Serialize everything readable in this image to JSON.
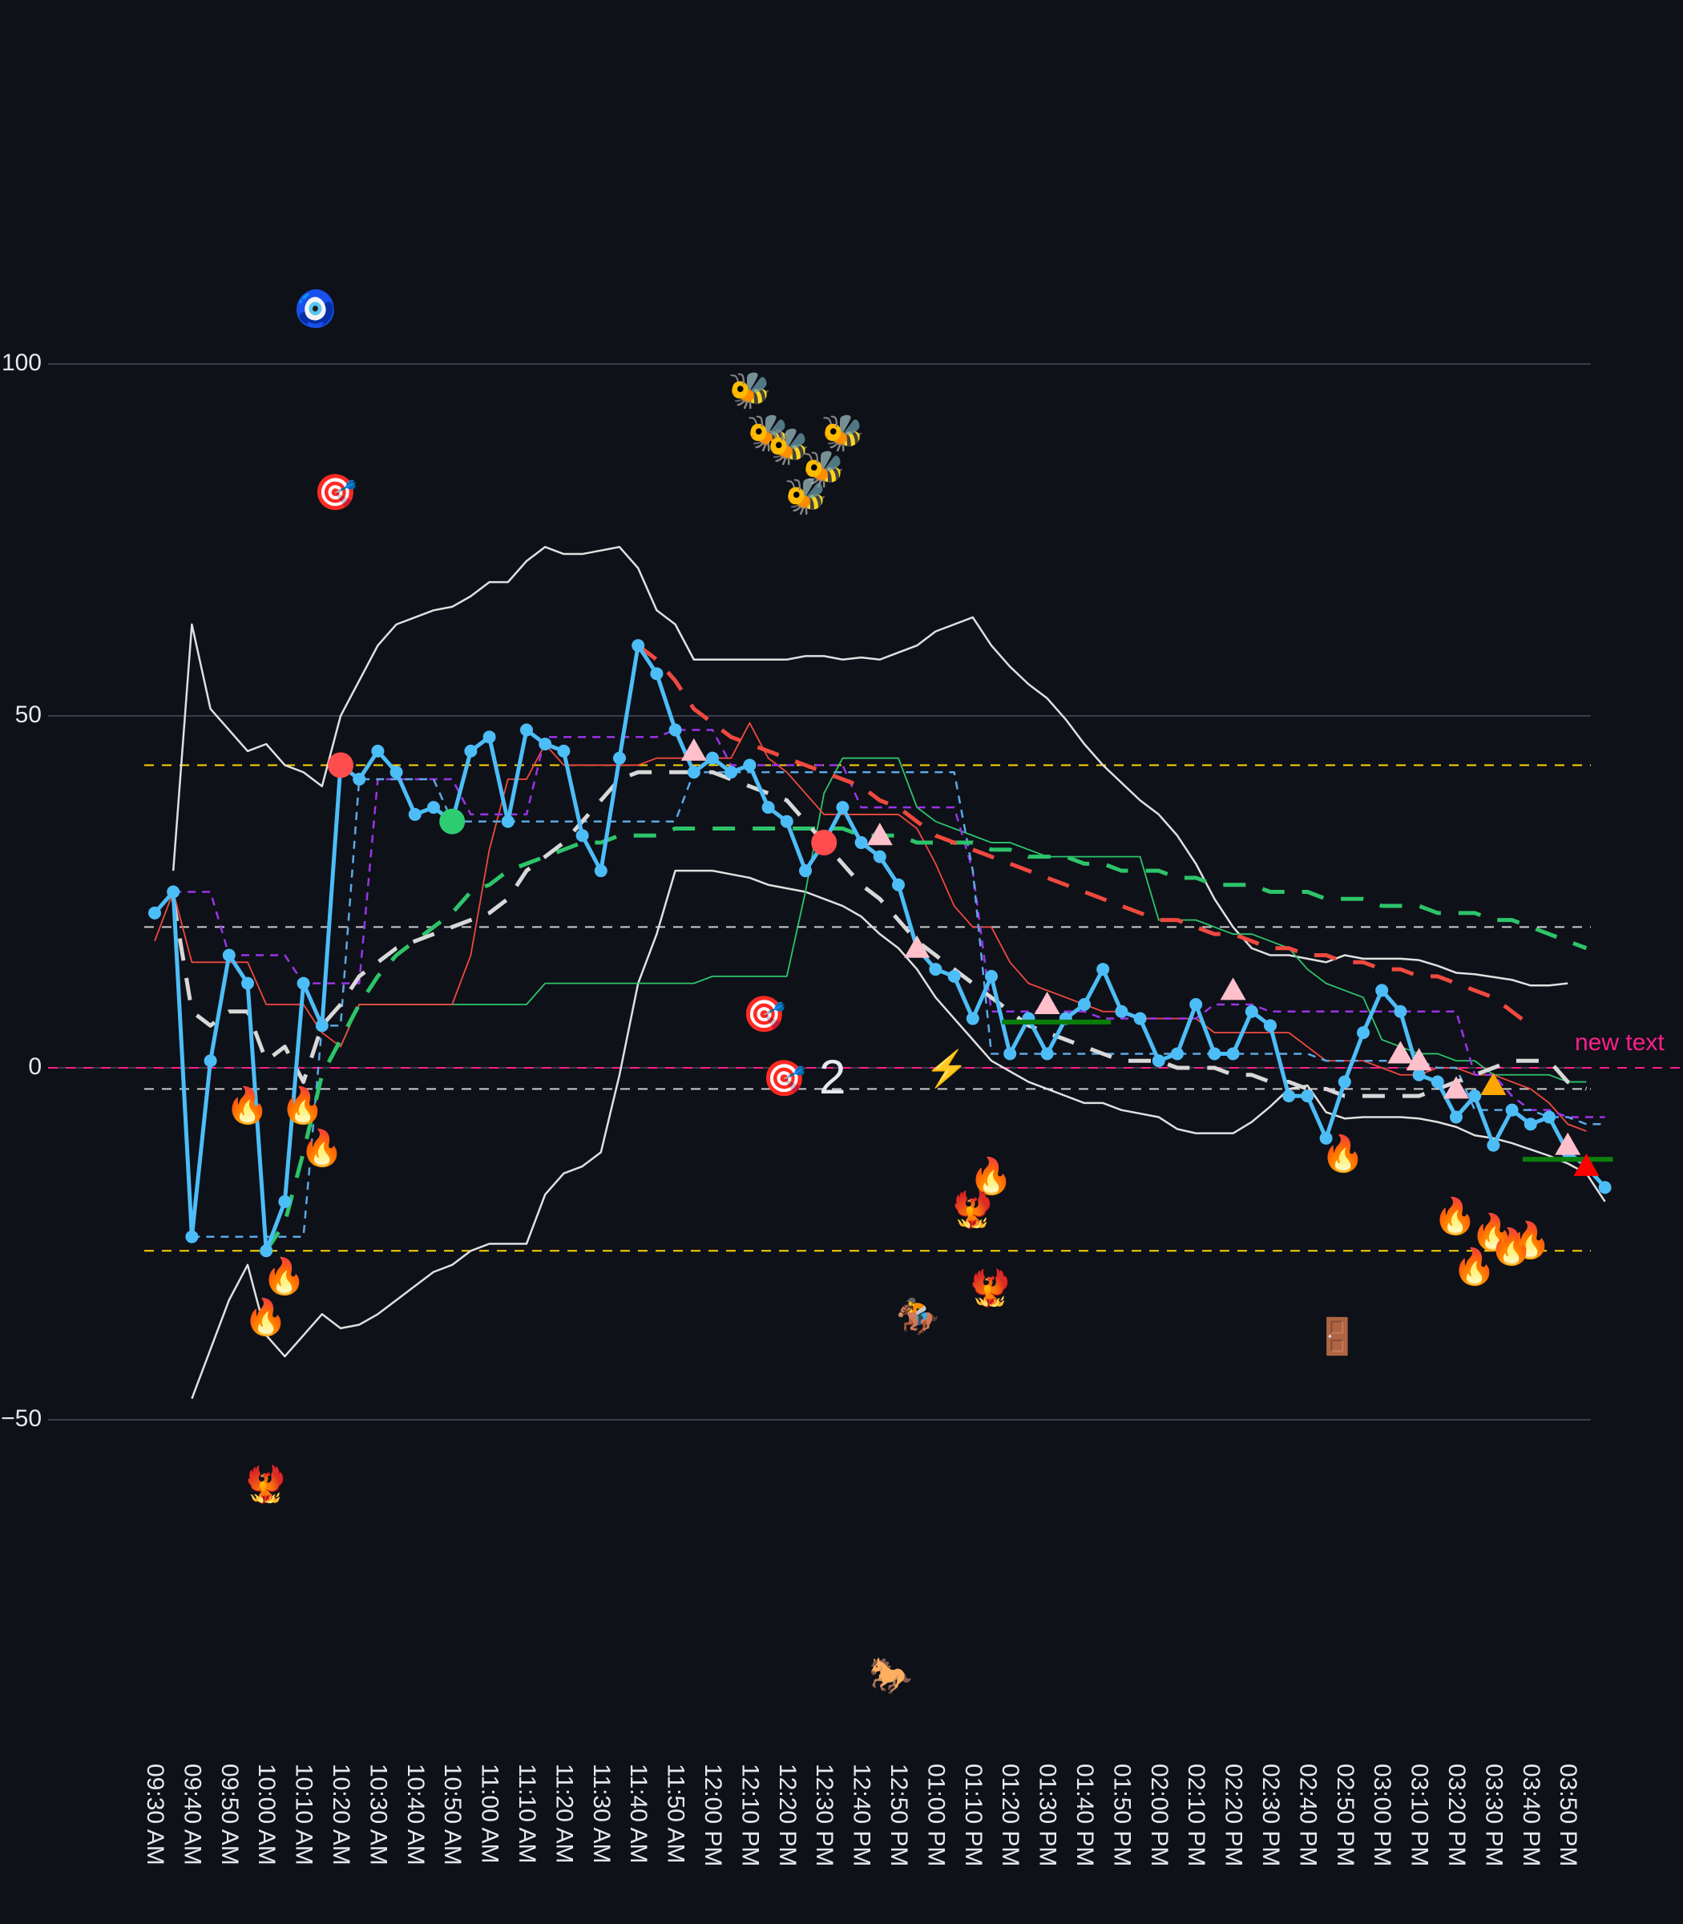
{
  "chart_data": {
    "type": "line",
    "title": "",
    "xlabel": "",
    "ylabel": "",
    "ylim": [
      -100,
      130
    ],
    "yticks": [
      100,
      50,
      0,
      -50
    ],
    "ytick_labels": [
      "100",
      "50",
      "0",
      "−50"
    ],
    "grid": "horizontal",
    "background": "#0e1118",
    "x_tick_labels": [
      "09:30 AM",
      "09:40 AM",
      "09:50 AM",
      "10:00 AM",
      "10:10 AM",
      "10:20 AM",
      "10:30 AM",
      "10:40 AM",
      "10:50 AM",
      "11:00 AM",
      "11:10 AM",
      "11:20 AM",
      "11:30 AM",
      "11:40 AM",
      "11:50 AM",
      "12:00 PM",
      "12:10 PM",
      "12:20 PM",
      "12:30 PM",
      "12:40 PM",
      "12:50 PM",
      "01:00 PM",
      "01:10 PM",
      "01:20 PM",
      "01:30 PM",
      "01:40 PM",
      "01:50 PM",
      "02:00 PM",
      "02:10 PM",
      "02:20 PM",
      "02:30 PM",
      "02:40 PM",
      "02:50 PM",
      "03:00 PM",
      "03:10 PM",
      "03:20 PM",
      "03:30 PM",
      "03:40 PM",
      "03:50 PM"
    ],
    "x_interval_minutes": 5,
    "series": [
      {
        "name": "main",
        "color": "#4dbdf7",
        "style": "solid-markers",
        "width": 5,
        "values": [
          22,
          25,
          -24,
          1,
          16,
          12,
          -26,
          -19,
          12,
          6,
          43,
          41,
          45,
          42,
          36,
          37,
          35,
          45,
          47,
          35,
          48,
          46,
          45,
          33,
          28,
          44,
          60,
          56,
          48,
          42,
          44,
          42,
          43,
          37,
          35,
          28,
          32,
          37,
          32,
          30,
          26,
          17,
          14,
          13,
          7,
          13,
          2,
          7,
          2,
          7,
          9,
          14,
          8,
          7,
          1,
          2,
          9,
          2,
          2,
          8,
          6,
          -4,
          -4,
          -10,
          -2,
          5,
          11,
          8,
          -1,
          -2,
          -7,
          -4,
          -11,
          -6,
          -8,
          -7,
          -12,
          -14,
          -17
        ]
      },
      {
        "name": "upper-band",
        "color": "#e0e0e0",
        "style": "solid",
        "width": 2.5,
        "values": [
          null,
          28,
          63,
          51,
          48,
          45,
          46,
          43,
          42,
          40,
          50,
          55,
          60,
          63,
          64,
          65,
          65.5,
          67,
          69,
          69,
          72,
          74,
          73,
          73,
          73.5,
          74,
          71,
          65,
          63,
          58,
          58,
          58,
          58,
          58,
          58,
          58.5,
          58.5,
          58,
          58.3,
          58,
          59,
          60,
          62,
          63,
          64,
          60,
          57,
          54.5,
          52.5,
          49.5,
          46,
          43,
          40.5,
          38,
          36,
          33,
          29,
          24,
          20,
          17,
          16,
          16,
          15.5,
          15,
          16,
          15.5,
          15.5,
          15.5,
          15.3,
          14.5,
          13.5,
          13.3,
          12.9,
          12.5,
          11.7,
          11.7,
          12
        ]
      },
      {
        "name": "lower-band",
        "color": "#e0e0e0",
        "style": "solid",
        "width": 2.5,
        "values": [
          null,
          null,
          -47,
          -40,
          -33,
          -28,
          -38,
          -41,
          -38,
          -35,
          -37,
          -36.5,
          -35,
          -33,
          -31,
          -29,
          -28,
          -26,
          -25,
          -25,
          -25,
          -18,
          -15,
          -14,
          -12,
          -1,
          12,
          19,
          28,
          28,
          28,
          27.5,
          27,
          26,
          25.5,
          25,
          24,
          23,
          21.5,
          19,
          17,
          14,
          10,
          7,
          4,
          1,
          -0.5,
          -2,
          -3,
          -4,
          -5,
          -5,
          -6,
          -6.5,
          -7,
          -8.7,
          -9.3,
          -9.3,
          -9.3,
          -7.7,
          -5.5,
          -3,
          -2.5,
          -6.3,
          -7.2,
          -7,
          -7,
          -7,
          -7.2,
          -7.7,
          -8.4,
          -9.6,
          -10,
          -10.7,
          -11.6,
          -12.5,
          -13.6,
          -15,
          -19
        ]
      },
      {
        "name": "red-thin",
        "color": "#f0493f",
        "style": "solid",
        "width": 1.8,
        "values": [
          18,
          25,
          15,
          15,
          15,
          15,
          9,
          9,
          9,
          5,
          3,
          9,
          9,
          9,
          9,
          9,
          9,
          16,
          31,
          41,
          41,
          46,
          43,
          43,
          43,
          43,
          43,
          44,
          44,
          44,
          44,
          44,
          49,
          44,
          42,
          39,
          36,
          36,
          36,
          36,
          36,
          34,
          29,
          23,
          20,
          20,
          15,
          12,
          11,
          10,
          9,
          8,
          8,
          7,
          7,
          7,
          7,
          5,
          5,
          5,
          5,
          5,
          3,
          1,
          1,
          1,
          0,
          -1,
          -1,
          0,
          0,
          -1,
          -1,
          -2,
          -3,
          -5,
          -8,
          -9
        ]
      },
      {
        "name": "green-thin",
        "color": "#2dc46a",
        "style": "solid",
        "width": 1.8,
        "values": [
          null,
          null,
          null,
          null,
          null,
          null,
          null,
          null,
          null,
          null,
          3,
          9,
          9,
          9,
          9,
          9,
          9,
          9,
          9,
          9,
          9,
          12,
          12,
          12,
          12,
          12,
          12,
          12,
          12,
          12,
          13,
          13,
          13,
          13,
          13,
          25,
          39,
          44,
          44,
          44,
          44,
          37,
          35,
          34,
          33,
          32,
          32,
          31,
          30,
          30,
          30,
          30,
          30,
          30,
          21,
          21,
          21,
          20,
          19,
          19,
          18,
          17,
          14,
          12,
          11,
          10,
          4,
          3,
          2,
          2,
          1,
          1,
          -1,
          -1,
          -1,
          -1,
          -2,
          -2
        ]
      },
      {
        "name": "purple-dashed",
        "color": "#9b34e8",
        "style": "dashed",
        "width": 2.5,
        "values": [
          null,
          25,
          25,
          25,
          16,
          16,
          16,
          16,
          12,
          12,
          12,
          12,
          41,
          41,
          41,
          41,
          41,
          36,
          36,
          36,
          36,
          47,
          47,
          47,
          47,
          47,
          47,
          47,
          48,
          48,
          48,
          43,
          43,
          43,
          43,
          43,
          43,
          43,
          37,
          37,
          37,
          37,
          37,
          37,
          28,
          8,
          8,
          8,
          8,
          8,
          8,
          7,
          7,
          7,
          7,
          7,
          7,
          9,
          9,
          9,
          8,
          8,
          8,
          8,
          8,
          8,
          8,
          8,
          8,
          8,
          8,
          -1,
          -1,
          -4,
          -6,
          -6,
          -7,
          -7,
          -7
        ]
      },
      {
        "name": "blue-dashed",
        "color": "#5aa9e6",
        "style": "dashed",
        "width": 2.5,
        "values": [
          null,
          null,
          -24,
          -24,
          -24,
          -24,
          -24,
          -24,
          -24,
          6,
          6,
          41,
          41,
          41,
          41,
          41,
          35,
          35,
          35,
          35,
          35,
          35,
          35,
          35,
          35,
          35,
          35,
          35,
          35,
          42,
          42,
          42,
          42,
          42,
          42,
          42,
          42,
          42,
          42,
          42,
          42,
          42,
          42,
          42,
          28,
          2,
          2,
          2,
          2,
          2,
          2,
          2,
          2,
          2,
          2,
          2,
          2,
          2,
          2,
          2,
          2,
          2,
          2,
          1,
          1,
          1,
          1,
          1,
          1,
          0,
          0,
          -6,
          -6,
          -6,
          -6,
          -7,
          -7,
          -8,
          -8
        ]
      },
      {
        "name": "white-dashed-ma",
        "color": "#d8d8d8",
        "style": "long-dash",
        "width": 5,
        "values": [
          null,
          24,
          8,
          6,
          8,
          8,
          1,
          3,
          -2,
          6,
          9,
          13,
          15,
          17,
          18,
          19,
          20,
          21,
          22,
          24,
          28,
          30,
          32,
          35,
          38,
          41,
          42,
          42,
          42,
          42,
          42,
          41,
          40,
          39,
          38,
          35,
          32,
          29,
          26,
          24,
          21,
          18,
          16,
          14,
          12,
          10,
          8,
          6,
          5,
          4,
          3,
          2,
          1,
          1,
          1,
          0,
          0,
          0,
          -1,
          -1,
          -2,
          -2,
          -3,
          -3,
          -4,
          -4,
          -4,
          -4,
          -4,
          -3,
          -2,
          -1,
          0,
          1,
          1,
          1,
          -2,
          -3
        ]
      },
      {
        "name": "green-dashed-ma",
        "color": "#2dc46a",
        "style": "long-dash",
        "width": 5,
        "values": [
          null,
          null,
          null,
          null,
          null,
          null,
          -26,
          -22,
          -12,
          -1,
          4,
          9,
          13,
          16,
          18,
          20,
          22,
          25,
          26,
          28,
          29,
          30,
          31,
          32,
          32,
          33,
          33,
          33,
          34,
          34,
          34,
          34,
          34,
          34,
          34,
          34,
          34,
          34,
          33,
          33,
          33,
          32,
          32,
          32,
          32,
          31,
          31,
          30,
          30,
          30,
          29,
          29,
          28,
          28,
          28,
          27,
          27,
          26,
          26,
          26,
          25,
          25,
          25,
          24,
          24,
          24,
          23,
          23,
          23,
          22,
          22,
          22,
          21,
          21,
          20,
          19,
          18,
          17
        ]
      },
      {
        "name": "red-dashed-ma",
        "color": "#f0493f",
        "style": "long-dash",
        "width": 5,
        "values": [
          null,
          null,
          null,
          null,
          null,
          null,
          null,
          null,
          null,
          null,
          null,
          null,
          null,
          null,
          null,
          null,
          null,
          null,
          null,
          null,
          null,
          null,
          null,
          null,
          null,
          null,
          60,
          58,
          55,
          51,
          49,
          47,
          46,
          45,
          44,
          43,
          42,
          41,
          40,
          38,
          37,
          35,
          33,
          32,
          31,
          30,
          29,
          28,
          27,
          26,
          25,
          24,
          23,
          22,
          21,
          21,
          20,
          19,
          19,
          18,
          17,
          17,
          16,
          16,
          15,
          15,
          14,
          14,
          13,
          13,
          12,
          11,
          10,
          8,
          6
        ]
      }
    ],
    "reference_lines": [
      {
        "y": 43,
        "color": "#ffd400",
        "style": "dashed",
        "width": 2
      },
      {
        "y": 20,
        "color": "#cccccc",
        "style": "dashed",
        "width": 2
      },
      {
        "y": -3,
        "color": "#cccccc",
        "style": "dashed",
        "width": 2
      },
      {
        "y": -26,
        "color": "#ffd400",
        "style": "dashed",
        "width": 2
      },
      {
        "y": 0,
        "color": "#ff1e8c",
        "style": "dashed",
        "width": 2,
        "label": "new text"
      }
    ],
    "short_segments": [
      {
        "x_start_index": 46,
        "x_end_index": 51,
        "y": 6.5,
        "color": "#0b7d0b",
        "width": 6
      },
      {
        "x_start_index": 74,
        "x_end_index": 78,
        "y": -13,
        "color": "#0b7d0b",
        "width": 6
      }
    ],
    "circle_markers": [
      {
        "index": 10,
        "y": 43,
        "color": "#ff4d4d",
        "r": 16
      },
      {
        "index": 16,
        "y": 35,
        "color": "#2ecc71",
        "r": 16
      },
      {
        "index": 36,
        "y": 32,
        "color": "#ff4d4d",
        "r": 16
      }
    ],
    "triangle_markers": [
      {
        "index": 29,
        "y": 45,
        "color": "#ffc0cb"
      },
      {
        "index": 39,
        "y": 33,
        "color": "#ffc0cb"
      },
      {
        "index": 41,
        "y": 17,
        "color": "#ffc0cb"
      },
      {
        "index": 48,
        "y": 9,
        "color": "#ffc0cb"
      },
      {
        "index": 58,
        "y": 11,
        "color": "#ffc0cb"
      },
      {
        "index": 67,
        "y": 2,
        "color": "#ffc0cb"
      },
      {
        "index": 68,
        "y": 1,
        "color": "#ffc0cb"
      },
      {
        "index": 70,
        "y": -3,
        "color": "#ffc0cb"
      },
      {
        "index": 72,
        "y": -2.5,
        "color": "#ffa500"
      },
      {
        "index": 76,
        "y": -11,
        "color": "#ffc0cb"
      },
      {
        "index": 77,
        "y": -14,
        "color": "#ff0000"
      }
    ],
    "emoji_annotations": [
      {
        "emoji": "🧿",
        "name": "nazar-amulet-icon",
        "x": 390,
        "y": 388
      },
      {
        "emoji": "🎯",
        "name": "direct-hit-icon",
        "x": 415,
        "y": 617
      },
      {
        "emoji": "🐝",
        "name": "bee-icon",
        "x": 932,
        "y": 490
      },
      {
        "emoji": "🐝",
        "name": "bee-icon",
        "x": 955,
        "y": 543
      },
      {
        "emoji": "🐝",
        "name": "bee-icon",
        "x": 980,
        "y": 560
      },
      {
        "emoji": "🐝",
        "name": "bee-icon",
        "x": 1048,
        "y": 543
      },
      {
        "emoji": "🐝",
        "name": "bee-icon",
        "x": 1024,
        "y": 588
      },
      {
        "emoji": "🐝",
        "name": "bee-icon",
        "x": 1002,
        "y": 622
      },
      {
        "emoji": "🎯",
        "name": "direct-hit-icon",
        "x": 950,
        "y": 1268
      },
      {
        "emoji": "🎯",
        "name": "direct-hit-icon",
        "x": 975,
        "y": 1348
      },
      {
        "emoji": "⚡",
        "name": "lightning-icon",
        "x": 1178,
        "y": 1336
      },
      {
        "emoji": "🔥",
        "name": "fire-icon",
        "x": 305,
        "y": 1382
      },
      {
        "emoji": "🔥",
        "name": "fire-icon",
        "x": 374,
        "y": 1382
      },
      {
        "emoji": "🔥",
        "name": "fire-icon",
        "x": 398,
        "y": 1435
      },
      {
        "emoji": "🔥",
        "name": "fire-icon",
        "x": 351,
        "y": 1595
      },
      {
        "emoji": "🔥",
        "name": "fire-icon",
        "x": 328,
        "y": 1646
      },
      {
        "emoji": "🔥",
        "name": "fire-icon",
        "x": 1233,
        "y": 1470
      },
      {
        "emoji": "🔥",
        "name": "fire-icon",
        "x": 1672,
        "y": 1442
      },
      {
        "emoji": "🔥",
        "name": "fire-icon",
        "x": 1812,
        "y": 1520
      },
      {
        "emoji": "🔥",
        "name": "fire-icon",
        "x": 1859,
        "y": 1540
      },
      {
        "emoji": "🔥",
        "name": "fire-icon",
        "x": 1905,
        "y": 1550
      },
      {
        "emoji": "🔥",
        "name": "fire-icon",
        "x": 1882,
        "y": 1558
      },
      {
        "emoji": "🔥",
        "name": "fire-icon",
        "x": 1836,
        "y": 1583
      },
      {
        "emoji": "🐦‍🔥",
        "name": "phoenix-icon",
        "x": 1210,
        "y": 1512
      },
      {
        "emoji": "🐦‍🔥",
        "name": "phoenix-icon",
        "x": 1232,
        "y": 1610
      },
      {
        "emoji": "🐦‍🔥",
        "name": "phoenix-icon",
        "x": 328,
        "y": 1855
      },
      {
        "emoji": "🏇",
        "name": "horse-racing-icon",
        "x": 1142,
        "y": 1645
      },
      {
        "emoji": "🚪",
        "name": "door-icon",
        "x": 1665,
        "y": 1670
      },
      {
        "emoji": "🐎",
        "name": "horse-icon",
        "x": 1108,
        "y": 2093
      }
    ],
    "text_annotations": [
      {
        "text": "2",
        "x": 1040,
        "y": 1345
      }
    ]
  }
}
